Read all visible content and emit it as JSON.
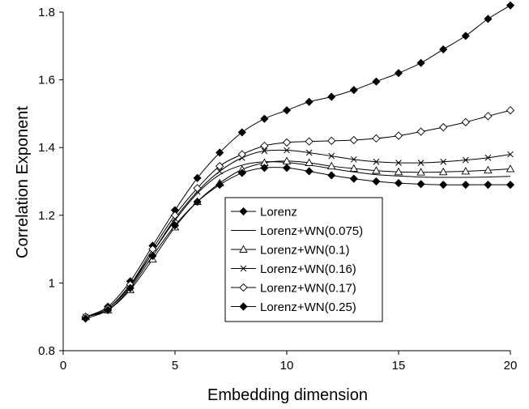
{
  "chart_data": {
    "type": "line",
    "title": "",
    "xlabel": "Embedding dimension",
    "ylabel": "Correlation Exponent",
    "xlim": [
      0,
      20
    ],
    "ylim": [
      0.8,
      1.8
    ],
    "x_ticks": [
      "0",
      "5",
      "10",
      "15",
      "20"
    ],
    "y_ticks": [
      "0.8",
      "1",
      "1.2",
      "1.4",
      "1.6",
      "1.8"
    ],
    "grid": false,
    "legend_position": "center-bottom",
    "x": [
      1,
      2,
      3,
      4,
      5,
      6,
      7,
      8,
      9,
      10,
      11,
      12,
      13,
      14,
      15,
      16,
      17,
      18,
      19,
      20
    ],
    "series": [
      {
        "name": "Lorenz",
        "marker": "filled-diamond",
        "values": [
          0.9,
          0.93,
          1.005,
          1.11,
          1.215,
          1.31,
          1.385,
          1.445,
          1.485,
          1.51,
          1.535,
          1.55,
          1.57,
          1.595,
          1.62,
          1.65,
          1.69,
          1.73,
          1.78,
          1.82
        ]
      },
      {
        "name": "Lorenz+WN(0.075)",
        "marker": "none",
        "values": [
          0.9,
          0.925,
          0.995,
          1.09,
          1.185,
          1.265,
          1.32,
          1.348,
          1.358,
          1.356,
          1.348,
          1.338,
          1.328,
          1.32,
          1.316,
          1.313,
          1.312,
          1.312,
          1.313,
          1.315
        ]
      },
      {
        "name": "Lorenz+WN(0.1)",
        "marker": "open-triangle",
        "values": [
          0.9,
          0.92,
          0.98,
          1.07,
          1.165,
          1.24,
          1.295,
          1.335,
          1.355,
          1.36,
          1.355,
          1.345,
          1.338,
          1.332,
          1.328,
          1.327,
          1.328,
          1.33,
          1.333,
          1.337
        ]
      },
      {
        "name": "Lorenz+WN(0.16)",
        "marker": "x",
        "values": [
          0.9,
          0.925,
          0.99,
          1.09,
          1.19,
          1.27,
          1.33,
          1.37,
          1.39,
          1.392,
          1.385,
          1.375,
          1.365,
          1.358,
          1.355,
          1.355,
          1.358,
          1.363,
          1.37,
          1.38
        ]
      },
      {
        "name": "Lorenz+WN(0.17)",
        "marker": "open-diamond",
        "values": [
          0.9,
          0.925,
          0.995,
          1.1,
          1.2,
          1.28,
          1.345,
          1.38,
          1.405,
          1.415,
          1.418,
          1.42,
          1.422,
          1.427,
          1.435,
          1.447,
          1.46,
          1.475,
          1.493,
          1.51
        ]
      },
      {
        "name": "Lorenz+WN(0.25)",
        "marker": "filled-diamond",
        "values": [
          0.895,
          0.92,
          0.985,
          1.08,
          1.17,
          1.24,
          1.29,
          1.325,
          1.34,
          1.34,
          1.33,
          1.318,
          1.308,
          1.3,
          1.295,
          1.292,
          1.29,
          1.29,
          1.29,
          1.29
        ]
      }
    ]
  }
}
